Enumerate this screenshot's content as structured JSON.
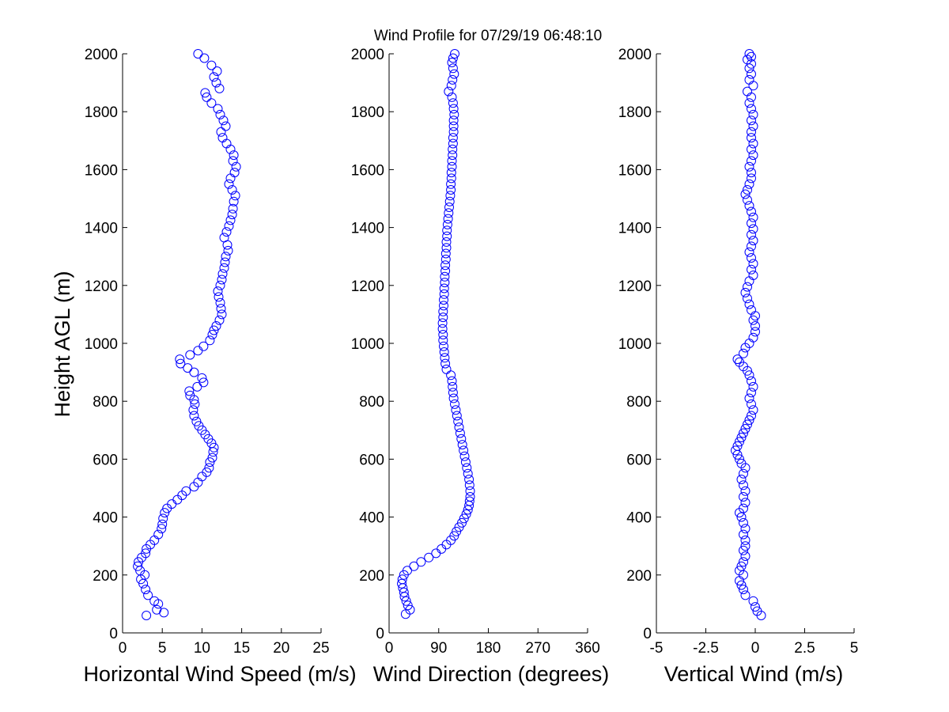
{
  "title": "Wind Profile for  07/29/19 06:48:10",
  "ylabel": "Height AGL (m)",
  "marker_color": "#0000ff",
  "chart_data": [
    {
      "type": "scatter",
      "xlabel": "Horizontal Wind Speed (m/s)",
      "ylabel": "Height AGL (m)",
      "xlim": [
        0,
        25
      ],
      "ylim": [
        0,
        2000
      ],
      "xticks": [
        "0",
        "5",
        "10",
        "15",
        "20",
        "25"
      ],
      "xtick_values": [
        0,
        5,
        10,
        15,
        20,
        25
      ],
      "yticks": [
        "0",
        "200",
        "400",
        "600",
        "800",
        "1000",
        "1200",
        "1400",
        "1600",
        "1800",
        "2000"
      ],
      "ytick_values": [
        0,
        200,
        400,
        600,
        800,
        1000,
        1200,
        1400,
        1600,
        1800,
        2000
      ],
      "marker": "open-circle",
      "points": [
        [
          3.0,
          60
        ],
        [
          5.2,
          70
        ],
        [
          4.3,
          80
        ],
        [
          4.5,
          100
        ],
        [
          4.0,
          110
        ],
        [
          3.2,
          130
        ],
        [
          2.9,
          150
        ],
        [
          2.6,
          170
        ],
        [
          2.3,
          185
        ],
        [
          2.8,
          200
        ],
        [
          2.2,
          215
        ],
        [
          1.9,
          230
        ],
        [
          2.0,
          245
        ],
        [
          2.4,
          260
        ],
        [
          2.9,
          275
        ],
        [
          3.0,
          290
        ],
        [
          3.5,
          305
        ],
        [
          4.0,
          320
        ],
        [
          4.5,
          340
        ],
        [
          4.9,
          360
        ],
        [
          5.0,
          375
        ],
        [
          5.1,
          395
        ],
        [
          5.3,
          415
        ],
        [
          5.6,
          430
        ],
        [
          6.2,
          445
        ],
        [
          6.9,
          460
        ],
        [
          7.5,
          475
        ],
        [
          8.0,
          490
        ],
        [
          9.0,
          505
        ],
        [
          9.5,
          520
        ],
        [
          10.0,
          540
        ],
        [
          10.6,
          555
        ],
        [
          10.9,
          570
        ],
        [
          11.0,
          590
        ],
        [
          11.3,
          605
        ],
        [
          11.4,
          625
        ],
        [
          11.5,
          640
        ],
        [
          11.2,
          655
        ],
        [
          10.8,
          670
        ],
        [
          10.4,
          685
        ],
        [
          10.0,
          700
        ],
        [
          9.6,
          715
        ],
        [
          9.3,
          730
        ],
        [
          9.0,
          750
        ],
        [
          8.9,
          770
        ],
        [
          9.1,
          790
        ],
        [
          9.0,
          805
        ],
        [
          8.5,
          820
        ],
        [
          8.4,
          835
        ],
        [
          9.4,
          850
        ],
        [
          10.2,
          865
        ],
        [
          10.0,
          880
        ],
        [
          9.0,
          900
        ],
        [
          8.2,
          915
        ],
        [
          7.3,
          930
        ],
        [
          7.2,
          945
        ],
        [
          8.5,
          960
        ],
        [
          9.5,
          975
        ],
        [
          10.2,
          990
        ],
        [
          11.0,
          1010
        ],
        [
          11.3,
          1030
        ],
        [
          11.5,
          1045
        ],
        [
          11.8,
          1060
        ],
        [
          12.2,
          1080
        ],
        [
          12.5,
          1100
        ],
        [
          12.4,
          1120
        ],
        [
          12.3,
          1140
        ],
        [
          12.1,
          1160
        ],
        [
          12.0,
          1180
        ],
        [
          12.3,
          1200
        ],
        [
          12.5,
          1220
        ],
        [
          12.6,
          1240
        ],
        [
          12.8,
          1260
        ],
        [
          12.9,
          1280
        ],
        [
          13.0,
          1300
        ],
        [
          13.3,
          1320
        ],
        [
          13.2,
          1340
        ],
        [
          12.8,
          1365
        ],
        [
          13.1,
          1385
        ],
        [
          13.4,
          1405
        ],
        [
          13.6,
          1425
        ],
        [
          13.8,
          1445
        ],
        [
          13.9,
          1465
        ],
        [
          14.0,
          1490
        ],
        [
          14.2,
          1510
        ],
        [
          13.8,
          1530
        ],
        [
          13.4,
          1550
        ],
        [
          13.6,
          1570
        ],
        [
          14.1,
          1590
        ],
        [
          14.3,
          1610
        ],
        [
          13.9,
          1630
        ],
        [
          14.0,
          1650
        ],
        [
          13.6,
          1670
        ],
        [
          13.1,
          1690
        ],
        [
          12.6,
          1710
        ],
        [
          12.4,
          1730
        ],
        [
          13.0,
          1750
        ],
        [
          12.7,
          1770
        ],
        [
          12.3,
          1790
        ],
        [
          12.0,
          1810
        ],
        [
          11.2,
          1830
        ],
        [
          10.6,
          1850
        ],
        [
          10.4,
          1865
        ],
        [
          12.2,
          1880
        ],
        [
          11.8,
          1900
        ],
        [
          11.5,
          1920
        ],
        [
          11.9,
          1940
        ],
        [
          11.2,
          1960
        ],
        [
          10.3,
          1985
        ],
        [
          9.5,
          2000
        ]
      ]
    },
    {
      "type": "scatter",
      "xlabel": "Wind Direction (degrees)",
      "ylabel": "Height AGL (m)",
      "xlim": [
        0,
        360
      ],
      "ylim": [
        0,
        2000
      ],
      "xticks": [
        "0",
        "90",
        "180",
        "270",
        "360"
      ],
      "xtick_values": [
        0,
        90,
        180,
        270,
        360
      ],
      "yticks": [
        "0",
        "200",
        "400",
        "600",
        "800",
        "1000",
        "1200",
        "1400",
        "1600",
        "1800",
        "2000"
      ],
      "ytick_values": [
        0,
        200,
        400,
        600,
        800,
        1000,
        1200,
        1400,
        1600,
        1800,
        2000
      ],
      "marker": "open-circle",
      "points": [
        [
          30,
          65
        ],
        [
          38,
          80
        ],
        [
          34,
          95
        ],
        [
          31,
          110
        ],
        [
          28,
          125
        ],
        [
          27,
          140
        ],
        [
          25,
          155
        ],
        [
          23,
          170
        ],
        [
          24,
          185
        ],
        [
          27,
          200
        ],
        [
          33,
          215
        ],
        [
          45,
          230
        ],
        [
          58,
          245
        ],
        [
          72,
          260
        ],
        [
          85,
          275
        ],
        [
          95,
          290
        ],
        [
          104,
          305
        ],
        [
          112,
          320
        ],
        [
          118,
          335
        ],
        [
          122,
          350
        ],
        [
          127,
          365
        ],
        [
          132,
          380
        ],
        [
          136,
          395
        ],
        [
          140,
          410
        ],
        [
          143,
          425
        ],
        [
          145,
          440
        ],
        [
          146,
          455
        ],
        [
          147,
          470
        ],
        [
          147,
          490
        ],
        [
          146,
          510
        ],
        [
          145,
          530
        ],
        [
          143,
          550
        ],
        [
          141,
          570
        ],
        [
          139,
          590
        ],
        [
          137,
          610
        ],
        [
          135,
          630
        ],
        [
          133,
          650
        ],
        [
          131,
          670
        ],
        [
          129,
          690
        ],
        [
          127,
          710
        ],
        [
          125,
          730
        ],
        [
          123,
          750
        ],
        [
          121,
          770
        ],
        [
          119,
          790
        ],
        [
          117,
          810
        ],
        [
          116,
          830
        ],
        [
          115,
          850
        ],
        [
          114,
          870
        ],
        [
          112,
          890
        ],
        [
          104,
          910
        ],
        [
          102,
          930
        ],
        [
          101,
          950
        ],
        [
          100,
          970
        ],
        [
          99,
          990
        ],
        [
          98,
          1010
        ],
        [
          98,
          1030
        ],
        [
          97,
          1050
        ],
        [
          97,
          1070
        ],
        [
          98,
          1090
        ],
        [
          98,
          1110
        ],
        [
          99,
          1130
        ],
        [
          99,
          1150
        ],
        [
          100,
          1170
        ],
        [
          100,
          1190
        ],
        [
          101,
          1210
        ],
        [
          101,
          1230
        ],
        [
          102,
          1250
        ],
        [
          102,
          1270
        ],
        [
          103,
          1290
        ],
        [
          103,
          1310
        ],
        [
          104,
          1330
        ],
        [
          104,
          1350
        ],
        [
          105,
          1370
        ],
        [
          105,
          1390
        ],
        [
          106,
          1410
        ],
        [
          107,
          1430
        ],
        [
          108,
          1450
        ],
        [
          109,
          1470
        ],
        [
          110,
          1490
        ],
        [
          111,
          1510
        ],
        [
          112,
          1530
        ],
        [
          112,
          1550
        ],
        [
          113,
          1570
        ],
        [
          113,
          1590
        ],
        [
          114,
          1610
        ],
        [
          114,
          1630
        ],
        [
          115,
          1650
        ],
        [
          115,
          1670
        ],
        [
          116,
          1690
        ],
        [
          116,
          1710
        ],
        [
          117,
          1730
        ],
        [
          117,
          1750
        ],
        [
          117,
          1770
        ],
        [
          118,
          1790
        ],
        [
          117,
          1810
        ],
        [
          116,
          1830
        ],
        [
          114,
          1850
        ],
        [
          108,
          1870
        ],
        [
          113,
          1890
        ],
        [
          115,
          1910
        ],
        [
          118,
          1930
        ],
        [
          116,
          1950
        ],
        [
          114,
          1970
        ],
        [
          116,
          1985
        ],
        [
          119,
          2000
        ]
      ]
    },
    {
      "type": "scatter",
      "xlabel": "Vertical Wind (m/s)",
      "ylabel": "Height AGL (m)",
      "xlim": [
        -5,
        5
      ],
      "ylim": [
        0,
        2000
      ],
      "xticks": [
        "-5",
        "-2.5",
        "0",
        "2.5",
        "5"
      ],
      "xtick_values": [
        -5,
        -2.5,
        0,
        2.5,
        5
      ],
      "yticks": [
        "0",
        "200",
        "400",
        "600",
        "800",
        "1000",
        "1200",
        "1400",
        "1600",
        "1800",
        "2000"
      ],
      "ytick_values": [
        0,
        200,
        400,
        600,
        800,
        1000,
        1200,
        1400,
        1600,
        1800,
        2000
      ],
      "marker": "open-circle",
      "points": [
        [
          0.3,
          60
        ],
        [
          0.1,
          75
        ],
        [
          0.0,
          90
        ],
        [
          -0.1,
          110
        ],
        [
          -0.5,
          130
        ],
        [
          -0.6,
          150
        ],
        [
          -0.7,
          165
        ],
        [
          -0.8,
          180
        ],
        [
          -0.6,
          200
        ],
        [
          -0.8,
          215
        ],
        [
          -0.7,
          230
        ],
        [
          -0.6,
          245
        ],
        [
          -0.5,
          265
        ],
        [
          -0.6,
          285
        ],
        [
          -0.5,
          300
        ],
        [
          -0.5,
          320
        ],
        [
          -0.6,
          340
        ],
        [
          -0.5,
          360
        ],
        [
          -0.6,
          380
        ],
        [
          -0.7,
          400
        ],
        [
          -0.8,
          415
        ],
        [
          -0.6,
          430
        ],
        [
          -0.5,
          450
        ],
        [
          -0.6,
          470
        ],
        [
          -0.5,
          490
        ],
        [
          -0.6,
          510
        ],
        [
          -0.7,
          530
        ],
        [
          -0.6,
          550
        ],
        [
          -0.5,
          570
        ],
        [
          -0.7,
          585
        ],
        [
          -0.8,
          600
        ],
        [
          -0.9,
          615
        ],
        [
          -1.0,
          630
        ],
        [
          -0.9,
          645
        ],
        [
          -0.8,
          660
        ],
        [
          -0.7,
          675
        ],
        [
          -0.6,
          690
        ],
        [
          -0.5,
          705
        ],
        [
          -0.4,
          720
        ],
        [
          -0.3,
          735
        ],
        [
          -0.2,
          750
        ],
        [
          -0.1,
          770
        ],
        [
          -0.2,
          790
        ],
        [
          -0.3,
          810
        ],
        [
          -0.2,
          830
        ],
        [
          -0.1,
          850
        ],
        [
          -0.2,
          870
        ],
        [
          -0.3,
          890
        ],
        [
          -0.4,
          905
        ],
        [
          -0.6,
          920
        ],
        [
          -0.8,
          935
        ],
        [
          -0.9,
          945
        ],
        [
          -0.6,
          965
        ],
        [
          -0.5,
          985
        ],
        [
          -0.3,
          1000
        ],
        [
          -0.1,
          1020
        ],
        [
          0.0,
          1040
        ],
        [
          0.0,
          1060
        ],
        [
          -0.1,
          1080
        ],
        [
          0.0,
          1095
        ],
        [
          -0.2,
          1115
        ],
        [
          -0.3,
          1135
        ],
        [
          -0.4,
          1155
        ],
        [
          -0.5,
          1175
        ],
        [
          -0.4,
          1195
        ],
        [
          -0.3,
          1215
        ],
        [
          -0.1,
          1235
        ],
        [
          -0.2,
          1255
        ],
        [
          -0.1,
          1275
        ],
        [
          -0.2,
          1295
        ],
        [
          -0.3,
          1315
        ],
        [
          -0.2,
          1335
        ],
        [
          -0.1,
          1355
        ],
        [
          -0.2,
          1375
        ],
        [
          -0.1,
          1395
        ],
        [
          -0.2,
          1415
        ],
        [
          -0.1,
          1435
        ],
        [
          -0.2,
          1455
        ],
        [
          -0.3,
          1475
        ],
        [
          -0.4,
          1495
        ],
        [
          -0.5,
          1515
        ],
        [
          -0.4,
          1530
        ],
        [
          -0.3,
          1550
        ],
        [
          -0.2,
          1570
        ],
        [
          -0.2,
          1590
        ],
        [
          -0.3,
          1610
        ],
        [
          -0.2,
          1630
        ],
        [
          -0.1,
          1650
        ],
        [
          -0.2,
          1670
        ],
        [
          -0.1,
          1690
        ],
        [
          -0.2,
          1710
        ],
        [
          -0.2,
          1730
        ],
        [
          -0.1,
          1750
        ],
        [
          -0.2,
          1770
        ],
        [
          -0.1,
          1790
        ],
        [
          -0.2,
          1810
        ],
        [
          -0.3,
          1830
        ],
        [
          -0.2,
          1850
        ],
        [
          -0.4,
          1870
        ],
        [
          -0.1,
          1890
        ],
        [
          -0.3,
          1910
        ],
        [
          -0.2,
          1930
        ],
        [
          -0.3,
          1950
        ],
        [
          -0.2,
          1965
        ],
        [
          -0.4,
          1980
        ],
        [
          -0.2,
          1990
        ],
        [
          -0.3,
          2000
        ]
      ]
    }
  ]
}
